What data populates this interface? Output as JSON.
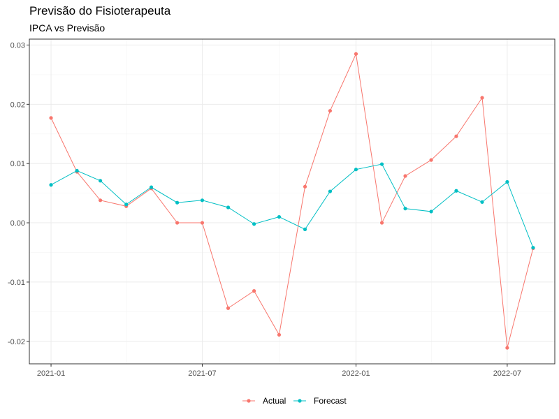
{
  "chart_data": {
    "type": "line",
    "title": "Previsão do Fisioterapeuta",
    "subtitle": "IPCA vs Previsão",
    "xlabel": "",
    "ylabel": "",
    "x": [
      "2021-01-01",
      "2021-02-01",
      "2021-03-01",
      "2021-04-01",
      "2021-05-01",
      "2021-06-01",
      "2021-07-01",
      "2021-08-01",
      "2021-09-01",
      "2021-10-01",
      "2021-11-01",
      "2021-12-01",
      "2022-01-01",
      "2022-02-01",
      "2022-03-01",
      "2022-04-01",
      "2022-05-01",
      "2022-06-01",
      "2022-07-01",
      "2022-08-01"
    ],
    "x_ticks": [
      "2021-01",
      "2021-07",
      "2022-01",
      "2022-07"
    ],
    "y_ticks": [
      "-0.02",
      "-0.01",
      "0.00",
      "0.01",
      "0.02",
      "0.03"
    ],
    "ylim": [
      -0.0238,
      0.031
    ],
    "grid": true,
    "legend_position": "bottom",
    "series": [
      {
        "name": "Actual",
        "color": "#F8766D",
        "values": [
          0.0177,
          0.0086,
          0.0038,
          0.0028,
          0.0058,
          0.0,
          0.0,
          -0.0144,
          -0.0115,
          -0.0189,
          0.0061,
          0.0189,
          0.0285,
          0.0,
          0.0079,
          0.0106,
          0.0146,
          0.0211,
          -0.0211,
          -0.0043
        ]
      },
      {
        "name": "Forecast",
        "color": "#00BFC4",
        "values": [
          0.0064,
          0.0088,
          0.0071,
          0.0031,
          0.006,
          0.0034,
          0.0038,
          0.0026,
          -0.0002,
          0.001,
          -0.0011,
          0.0053,
          0.009,
          0.0099,
          0.0024,
          0.0019,
          0.0054,
          0.0035,
          0.0069,
          -0.0042
        ]
      }
    ]
  }
}
